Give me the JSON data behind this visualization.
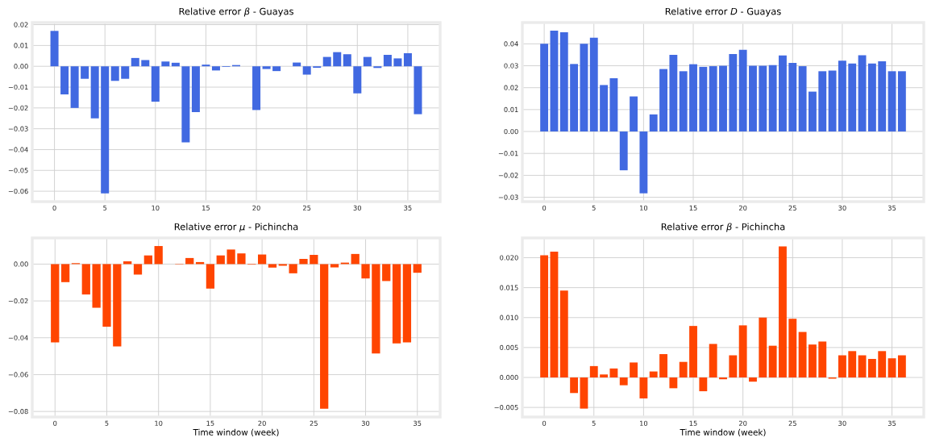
{
  "chart_data": [
    {
      "type": "bar",
      "title": "Relative error *β* - Guayas",
      "color": "#4169e1",
      "grid": true,
      "x": [
        0,
        1,
        2,
        3,
        4,
        5,
        6,
        7,
        8,
        9,
        10,
        11,
        12,
        13,
        14,
        15,
        16,
        17,
        18,
        19,
        20,
        21,
        22,
        23,
        24,
        25,
        26,
        27,
        28,
        29,
        30,
        31,
        32,
        33,
        34,
        35,
        36
      ],
      "values": [
        0.017,
        -0.0135,
        -0.02,
        -0.006,
        -0.025,
        -0.061,
        -0.007,
        -0.006,
        0.004,
        0.003,
        -0.017,
        0.0023,
        0.0017,
        -0.0365,
        -0.022,
        0.0008,
        -0.002,
        -0.0003,
        0.0006,
        0,
        -0.021,
        -0.0013,
        -0.0023,
        0,
        0.0018,
        -0.004,
        -0.0007,
        0.0045,
        0.0068,
        0.0058,
        -0.013,
        0.0045,
        -0.0008,
        0.0055,
        0.0038,
        0.0063,
        -0.023
      ],
      "xlim": [
        -2.2,
        38.2
      ],
      "xticks": [
        0,
        5,
        10,
        15,
        20,
        25,
        30,
        35
      ],
      "ylim": [
        -0.065,
        0.021
      ],
      "yticks": [
        {
          "value": -0.06,
          "label": "−0.06"
        },
        {
          "value": -0.05,
          "label": "−0.05"
        },
        {
          "value": -0.04,
          "label": "−0.04"
        },
        {
          "value": -0.03,
          "label": "−0.03"
        },
        {
          "value": -0.02,
          "label": "−0.02"
        },
        {
          "value": -0.01,
          "label": "−0.01"
        },
        {
          "value": 0,
          "label": "0.00"
        },
        {
          "value": 0.01,
          "label": "0.01"
        },
        {
          "value": 0.02,
          "label": "0.02"
        }
      ]
    },
    {
      "type": "bar",
      "title": "Relative error *D* - Guayas",
      "color": "#4169e1",
      "grid": true,
      "x": [
        0,
        1,
        2,
        3,
        4,
        5,
        6,
        7,
        8,
        9,
        10,
        11,
        12,
        13,
        14,
        15,
        16,
        17,
        18,
        19,
        20,
        21,
        22,
        23,
        24,
        25,
        26,
        27,
        28,
        29,
        30,
        31,
        32,
        33,
        34,
        35,
        36
      ],
      "values": [
        0.04,
        0.046,
        0.0453,
        0.0308,
        0.04,
        0.0428,
        0.0212,
        0.0243,
        -0.0177,
        0.016,
        -0.0282,
        0.0078,
        0.0285,
        0.035,
        0.0275,
        0.0307,
        0.0295,
        0.0298,
        0.03,
        0.0353,
        0.0373,
        0.03,
        0.03,
        0.0303,
        0.0347,
        0.0313,
        0.0298,
        0.0182,
        0.0275,
        0.0278,
        0.0323,
        0.031,
        0.0348,
        0.031,
        0.032,
        0.0275,
        0.0275
      ],
      "xlim": [
        -2.2,
        38.2
      ],
      "xticks": [
        0,
        5,
        10,
        15,
        20,
        25,
        30,
        35
      ],
      "ylim": [
        -0.032,
        0.0497
      ],
      "yticks": [
        {
          "value": -0.03,
          "label": "−0.03"
        },
        {
          "value": -0.02,
          "label": "−0.02"
        },
        {
          "value": -0.01,
          "label": "−0.01"
        },
        {
          "value": 0,
          "label": "0.00"
        },
        {
          "value": 0.01,
          "label": "0.01"
        },
        {
          "value": 0.02,
          "label": "0.02"
        },
        {
          "value": 0.03,
          "label": "0.03"
        },
        {
          "value": 0.04,
          "label": "0.04"
        }
      ]
    },
    {
      "type": "bar",
      "title": "Relative error *μ* - Pichincha",
      "xlabel": "Time window (week)",
      "color": "#ff4500",
      "grid": true,
      "x": [
        0,
        1,
        2,
        3,
        4,
        5,
        6,
        7,
        8,
        9,
        10,
        11,
        12,
        13,
        14,
        15,
        16,
        17,
        18,
        19,
        20,
        21,
        22,
        23,
        24,
        25,
        26,
        27,
        28,
        29,
        30,
        31,
        32,
        33,
        34,
        35
      ],
      "values": [
        -0.0425,
        -0.0098,
        0.0005,
        -0.0165,
        -0.0237,
        -0.034,
        -0.0447,
        0.0015,
        -0.0057,
        0.0047,
        0.0098,
        0,
        -0.0002,
        0.0033,
        0.0011,
        -0.0133,
        0.0047,
        0.0079,
        0.0058,
        -0.0003,
        0.0052,
        -0.0019,
        -0.0009,
        -0.005,
        0.0028,
        0.005,
        -0.0785,
        -0.0018,
        0.0008,
        0.0055,
        -0.0078,
        -0.0485,
        -0.0092,
        -0.043,
        -0.0425,
        -0.0047
      ],
      "xlim": [
        -2.2,
        37.2
      ],
      "xticks": [
        0,
        5,
        10,
        15,
        20,
        25,
        30,
        35
      ],
      "ylim": [
        -0.083,
        0.0142
      ],
      "yticks": [
        {
          "value": -0.08,
          "label": "−0.08"
        },
        {
          "value": -0.06,
          "label": "−0.06"
        },
        {
          "value": -0.04,
          "label": "−0.04"
        },
        {
          "value": -0.02,
          "label": "−0.02"
        },
        {
          "value": 0,
          "label": "0.00"
        }
      ]
    },
    {
      "type": "bar",
      "title": "Relative error *β* - Pichincha",
      "xlabel": "Time window (week)",
      "color": "#ff4500",
      "grid": true,
      "x": [
        0,
        1,
        2,
        3,
        4,
        5,
        6,
        7,
        8,
        9,
        10,
        11,
        12,
        13,
        14,
        15,
        16,
        17,
        18,
        19,
        20,
        21,
        22,
        23,
        24,
        25,
        26,
        27,
        28,
        29,
        30,
        31,
        32,
        33,
        34,
        35,
        36
      ],
      "values": [
        0.0204,
        0.021,
        0.0145,
        -0.0026,
        -0.0052,
        0.0019,
        0.0005,
        0.0015,
        -0.0013,
        0.0025,
        -0.0035,
        0.001,
        0.0039,
        -0.0018,
        0.0026,
        0.0086,
        -0.0023,
        0.0056,
        -0.0003,
        0.0037,
        0.0087,
        -0.0007,
        0.01,
        0.0053,
        0.0219,
        0.0098,
        0.0076,
        0.0055,
        0.006,
        -0.0002,
        0.0037,
        0.0044,
        0.0037,
        0.0031,
        0.0044,
        0.0032,
        0.0037
      ],
      "xlim": [
        -2.2,
        38.2
      ],
      "xticks": [
        0,
        5,
        10,
        15,
        20,
        25,
        30,
        35
      ],
      "ylim": [
        -0.0066,
        0.0233
      ],
      "yticks": [
        {
          "value": -0.005,
          "label": "−0.005"
        },
        {
          "value": 0,
          "label": "0.000"
        },
        {
          "value": 0.005,
          "label": "0.005"
        },
        {
          "value": 0.01,
          "label": "0.010"
        },
        {
          "value": 0.015,
          "label": "0.015"
        },
        {
          "value": 0.02,
          "label": "0.020"
        }
      ]
    }
  ]
}
